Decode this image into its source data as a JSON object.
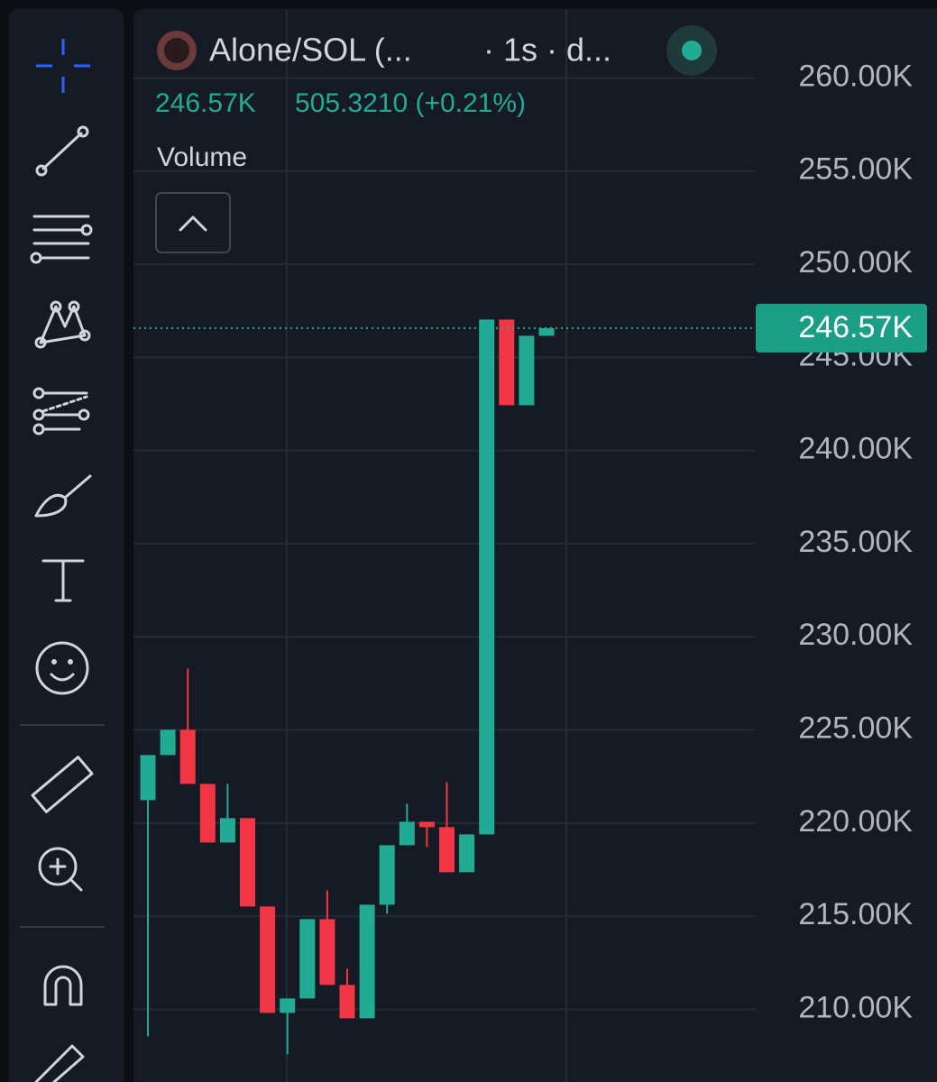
{
  "chart_data": {
    "type": "candlestick",
    "title": "Alone/SOL (...",
    "subtitle": "· 1s · d...",
    "last_price_text": "246.57K",
    "change_text": "505.3210 (+0.21%)",
    "indicator": "Volume",
    "ylim": [
      206100,
      263700
    ],
    "yticks": [
      {
        "value": 260000,
        "label": "260.00K"
      },
      {
        "value": 255000,
        "label": "255.00K"
      },
      {
        "value": 250000,
        "label": "250.00K"
      },
      {
        "value": 245000,
        "label": "245.00K"
      },
      {
        "value": 240000,
        "label": "240.00K"
      },
      {
        "value": 235000,
        "label": "235.00K"
      },
      {
        "value": 230000,
        "label": "230.00K"
      },
      {
        "value": 225000,
        "label": "225.00K"
      },
      {
        "value": 220000,
        "label": "220.00K"
      },
      {
        "value": 215000,
        "label": "215.00K"
      },
      {
        "value": 210000,
        "label": "210.00K"
      }
    ],
    "grid": true,
    "up_color": "#22ab94",
    "down_color": "#f23645",
    "open": [
      221232,
      223652,
      225007,
      222103,
      218957,
      220264,
      215520,
      209809,
      210584,
      214843,
      211310,
      209519,
      215617,
      218812,
      220070,
      219780,
      217360,
      219392,
      247029,
      242431,
      246158
    ],
    "high": [
      223652,
      225007,
      228298,
      222103,
      222103,
      220264,
      215520,
      210584,
      214843,
      216392,
      212181,
      215617,
      218812,
      221038,
      220070,
      222200,
      219392,
      247029,
      247029,
      246158,
      246570
    ],
    "low": [
      208551,
      223652,
      222103,
      218957,
      218957,
      215520,
      209809,
      207583,
      210584,
      211310,
      209519,
      209519,
      215133,
      218812,
      218715,
      217360,
      217360,
      219392,
      242431,
      242431,
      246158
    ],
    "close": [
      223652,
      225007,
      222103,
      218957,
      220264,
      215520,
      209809,
      210584,
      214843,
      211310,
      209519,
      215617,
      218812,
      220070,
      219780,
      217360,
      219392,
      247029,
      242431,
      246158,
      246570
    ],
    "last_price": {
      "value": 246570,
      "label": "246.57K"
    }
  }
}
